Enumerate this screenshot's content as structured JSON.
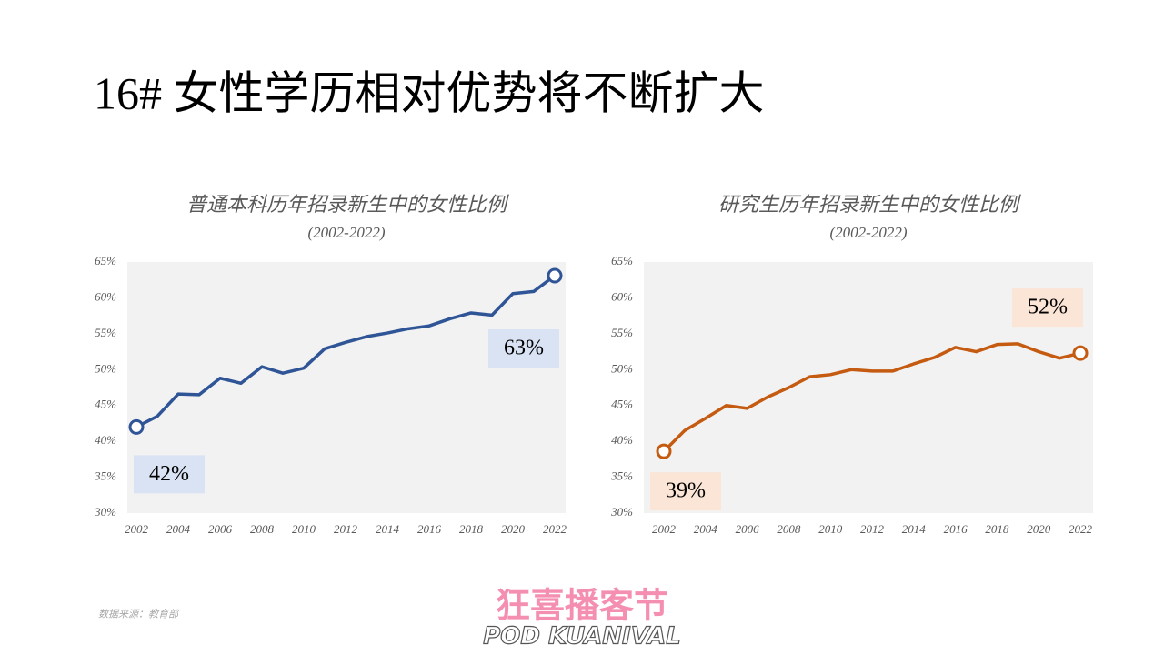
{
  "title": "16# 女性学历相对优势将不断扩大",
  "source": "数据来源：教育部",
  "logo": {
    "name": "狂喜播客节",
    "tagline": "POD KUANIVAL"
  },
  "chart_data": [
    {
      "type": "line",
      "title": "普通本科历年招录新生中的女性比例",
      "subtitle": "(2002-2022)",
      "x": [
        2002,
        2003,
        2004,
        2005,
        2006,
        2007,
        2008,
        2009,
        2010,
        2011,
        2012,
        2013,
        2014,
        2015,
        2016,
        2017,
        2018,
        2019,
        2020,
        2021,
        2022
      ],
      "values": [
        42.0,
        43.5,
        46.6,
        46.5,
        48.8,
        48.1,
        50.4,
        49.5,
        50.2,
        52.9,
        53.8,
        54.6,
        55.1,
        55.7,
        56.1,
        57.1,
        57.9,
        57.6,
        60.6,
        60.9,
        63.1
      ],
      "value_labels": [
        "42%",
        null,
        null,
        null,
        null,
        null,
        null,
        null,
        null,
        null,
        null,
        null,
        null,
        null,
        null,
        null,
        null,
        null,
        null,
        null,
        "63%"
      ],
      "color": "#2f5597",
      "label_color": "#dae3f3",
      "xlim": [
        2002,
        2022
      ],
      "xticks": [
        2002,
        2004,
        2006,
        2008,
        2010,
        2012,
        2014,
        2016,
        2018,
        2020,
        2022
      ],
      "ylim": [
        30,
        65
      ],
      "yticks": [
        {
          "value": 30,
          "label": "30%"
        },
        {
          "value": 35,
          "label": "35%"
        },
        {
          "value": 40,
          "label": "40%"
        },
        {
          "value": 45,
          "label": "45%"
        },
        {
          "value": 50,
          "label": "50%"
        },
        {
          "value": 55,
          "label": "55%"
        },
        {
          "value": 60,
          "label": "60%"
        },
        {
          "value": 65,
          "label": "65%"
        }
      ],
      "grid": false
    },
    {
      "type": "line",
      "title": "研究生历年招录新生中的女性比例",
      "subtitle": "(2002-2022)",
      "x": [
        2002,
        2003,
        2004,
        2005,
        2006,
        2007,
        2008,
        2009,
        2010,
        2011,
        2012,
        2013,
        2014,
        2015,
        2016,
        2017,
        2018,
        2019,
        2020,
        2021,
        2022
      ],
      "values": [
        38.6,
        41.5,
        43.2,
        45.0,
        44.6,
        46.2,
        47.5,
        49.0,
        49.3,
        50.0,
        49.8,
        49.8,
        50.8,
        51.7,
        53.1,
        52.5,
        53.5,
        53.6,
        52.5,
        51.6,
        52.3
      ],
      "value_labels": [
        "39%",
        null,
        null,
        null,
        null,
        null,
        null,
        null,
        null,
        null,
        null,
        null,
        null,
        null,
        null,
        null,
        null,
        null,
        null,
        null,
        "52%"
      ],
      "color": "#c55a11",
      "label_color": "#fbe5d6",
      "xlim": [
        2002,
        2022
      ],
      "xticks": [
        2002,
        2004,
        2006,
        2008,
        2010,
        2012,
        2014,
        2016,
        2018,
        2020,
        2022
      ],
      "ylim": [
        30,
        65
      ],
      "yticks": [
        {
          "value": 30,
          "label": "30%"
        },
        {
          "value": 35,
          "label": "35%"
        },
        {
          "value": 40,
          "label": "40%"
        },
        {
          "value": 45,
          "label": "45%"
        },
        {
          "value": 50,
          "label": "50%"
        },
        {
          "value": 55,
          "label": "55%"
        },
        {
          "value": 60,
          "label": "60%"
        },
        {
          "value": 65,
          "label": "65%"
        }
      ],
      "grid": false
    }
  ]
}
